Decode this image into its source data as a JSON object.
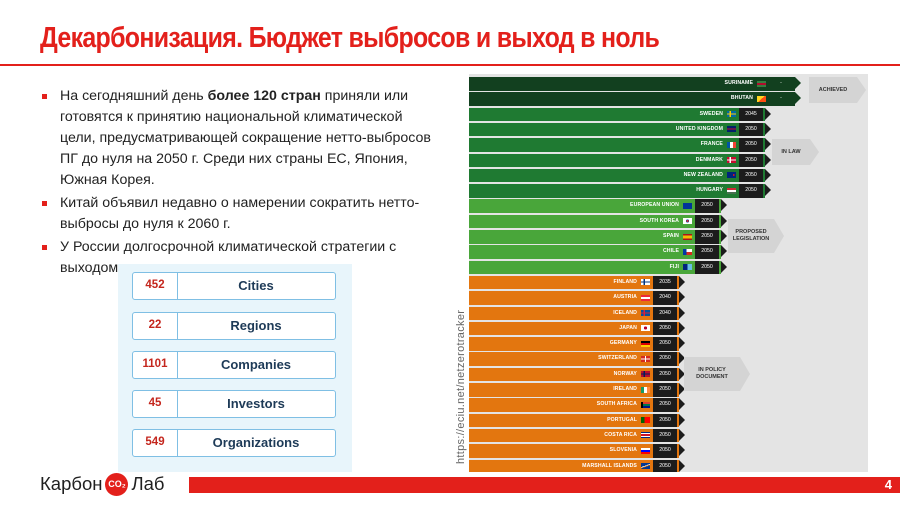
{
  "title": "Декарбонизация. Бюджет выбросов и выход в ноль",
  "bullets": {
    "b1_pre": "На сегодняшний день ",
    "b1_bold": "более 120 стран",
    "b1_post": " приняли или готовятся к принятию национальной климатической цели, предусматривающей сокращение нетто-выбросов ПГ до нуля на 2050 г. Среди них страны ЕС, Япония, Южная Корея.",
    "b2": "Китай объявил недавно о намерении сократить нетто-выбросы до нуля к 2060 г.",
    "b3": "У России долгосрочной климатической стратегии с выходом в ноль нет."
  },
  "stats": [
    {
      "value": "452",
      "label": "Cities"
    },
    {
      "value": "22",
      "label": "Regions"
    },
    {
      "value": "1101",
      "label": "Companies"
    },
    {
      "value": "45",
      "label": "Investors"
    },
    {
      "value": "549",
      "label": "Organizations"
    }
  ],
  "source": "https://eciu.net/netzerotracker",
  "tracker": {
    "groups": {
      "achieved": "ACHIEVED",
      "in_law": "IN LAW",
      "proposed": "PROPOSED LEGISLATION",
      "policy": "IN POLICY DOCUMENT"
    },
    "rows": [
      {
        "name": "SURINAME",
        "year": "-",
        "status": "achieved",
        "flag": "suriname"
      },
      {
        "name": "BHUTAN",
        "year": "-",
        "status": "achieved",
        "flag": "bhutan"
      },
      {
        "name": "SWEDEN",
        "year": "2045",
        "status": "law",
        "flag": "sweden"
      },
      {
        "name": "UNITED KINGDOM",
        "year": "2050",
        "status": "law",
        "flag": "uk"
      },
      {
        "name": "FRANCE",
        "year": "2050",
        "status": "law",
        "flag": "france"
      },
      {
        "name": "DENMARK",
        "year": "2050",
        "status": "law",
        "flag": "denmark"
      },
      {
        "name": "NEW ZEALAND",
        "year": "2050",
        "status": "law",
        "flag": "nz"
      },
      {
        "name": "HUNGARY",
        "year": "2050",
        "status": "law",
        "flag": "hungary"
      },
      {
        "name": "EUROPEAN UNION",
        "year": "2050",
        "status": "proposed",
        "flag": "eu"
      },
      {
        "name": "SOUTH KOREA",
        "year": "2050",
        "status": "proposed",
        "flag": "korea"
      },
      {
        "name": "SPAIN",
        "year": "2050",
        "status": "proposed",
        "flag": "spain"
      },
      {
        "name": "CHILE",
        "year": "2050",
        "status": "proposed",
        "flag": "chile"
      },
      {
        "name": "FIJI",
        "year": "2050",
        "status": "proposed",
        "flag": "fiji"
      },
      {
        "name": "FINLAND",
        "year": "2035",
        "status": "policy",
        "flag": "finland"
      },
      {
        "name": "AUSTRIA",
        "year": "2040",
        "status": "policy",
        "flag": "austria"
      },
      {
        "name": "ICELAND",
        "year": "2040",
        "status": "policy",
        "flag": "iceland"
      },
      {
        "name": "JAPAN",
        "year": "2050",
        "status": "policy",
        "flag": "japan"
      },
      {
        "name": "GERMANY",
        "year": "2050",
        "status": "policy",
        "flag": "germany"
      },
      {
        "name": "SWITZERLAND",
        "year": "2050",
        "status": "policy",
        "flag": "switzerland"
      },
      {
        "name": "NORWAY",
        "year": "2050",
        "status": "policy",
        "flag": "norway"
      },
      {
        "name": "IRELAND",
        "year": "2050",
        "status": "policy",
        "flag": "ireland"
      },
      {
        "name": "SOUTH AFRICA",
        "year": "2050",
        "status": "policy",
        "flag": "southafrica"
      },
      {
        "name": "PORTUGAL",
        "year": "2050",
        "status": "policy",
        "flag": "portugal"
      },
      {
        "name": "COSTA RICA",
        "year": "2050",
        "status": "policy",
        "flag": "costarica"
      },
      {
        "name": "SLOVENIA",
        "year": "2050",
        "status": "policy",
        "flag": "slovenia"
      },
      {
        "name": "MARSHALL ISLANDS",
        "year": "2050",
        "status": "policy",
        "flag": "marshall"
      }
    ]
  },
  "logo": {
    "left": "Карбон",
    "badge": "CO₂",
    "right": "Лаб"
  },
  "page_number": "4",
  "colors": {
    "accent": "#e3201b",
    "achieved": "#12401f",
    "law": "#1f7a32",
    "proposed": "#49a63a",
    "policy": "#e3760f"
  }
}
